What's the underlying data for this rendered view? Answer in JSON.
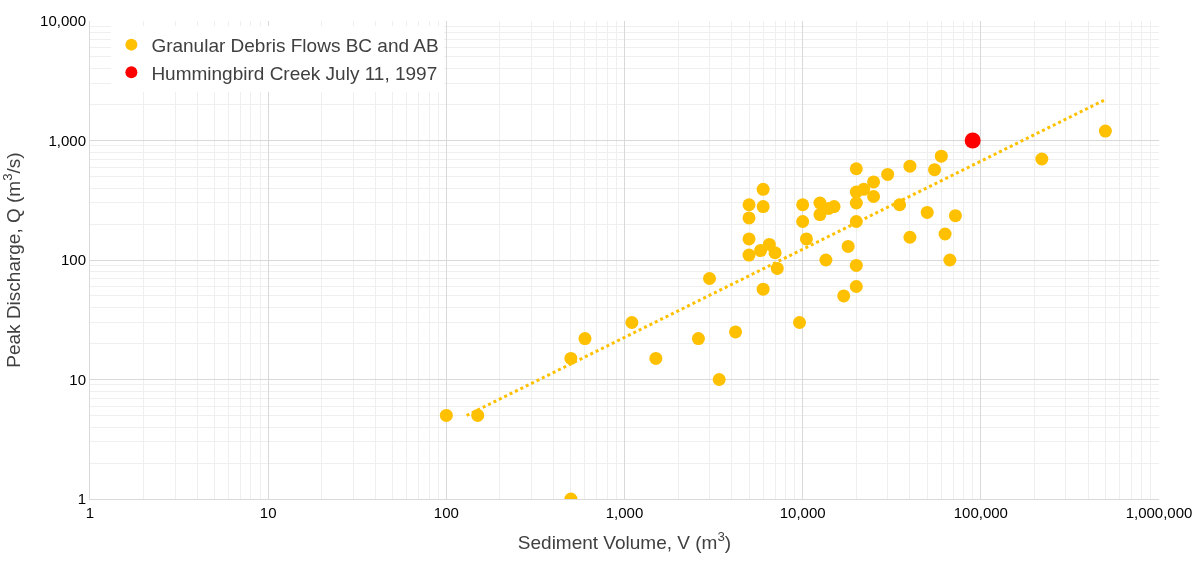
{
  "chart_data": {
    "type": "scatter",
    "xlabel": "Sediment Volume, V (m$^{3}$)",
    "ylabel": "Peak Discharge, Q (m$^{3}$/s)",
    "log": "xy",
    "grid": true,
    "legend": "top left",
    "marker": "circle",
    "xlim": [
      1,
      1000000
    ],
    "ylim": [
      1,
      10000
    ],
    "xticks": [
      1,
      10,
      100,
      {
        "value": 1000,
        "label": "1,000"
      },
      {
        "value": 10000,
        "label": "10,000"
      },
      {
        "value": 100000,
        "label": "100,000"
      },
      {
        "value": 1000000,
        "label": "1,000,000"
      }
    ],
    "yticks": [
      1,
      10,
      100,
      {
        "value": 1000,
        "label": "1,000"
      },
      {
        "value": 10000,
        "label": "10,000"
      }
    ],
    "series": [
      {
        "name": "Granular Debris Flows BC and AB",
        "color": "#ffc000",
        "x": [
          100,
          150,
          500,
          500,
          600,
          1100,
          1500,
          2600,
          3000,
          3400,
          4200,
          5000,
          5000,
          5000,
          5000,
          5800,
          6000,
          6000,
          6000,
          6500,
          7000,
          7200,
          9600,
          10000,
          10000,
          10500,
          12500,
          12500,
          13500,
          14000,
          15000,
          17000,
          18000,
          20000,
          20000,
          20000,
          20000,
          20000,
          20000,
          22000,
          25000,
          25000,
          30000,
          35000,
          40000,
          40000,
          50000,
          55000,
          60000,
          63000,
          67000,
          72000,
          220000,
          500000
        ],
        "values": [
          5,
          5,
          1,
          15,
          22,
          30,
          15,
          22,
          70,
          10,
          25,
          290,
          225,
          150,
          110,
          120,
          390,
          280,
          57,
          135,
          115,
          85,
          30,
          290,
          210,
          150,
          300,
          240,
          100,
          270,
          280,
          50,
          130,
          580,
          370,
          300,
          210,
          90,
          60,
          390,
          450,
          340,
          520,
          290,
          610,
          155,
          250,
          570,
          740,
          165,
          100,
          235,
          700,
          1200
        ]
      },
      {
        "name": "Hummingbird Creek July 11, 1997",
        "color": "#ff0000",
        "x": [
          90000
        ],
        "values": [
          1000
        ]
      },
      {
        "type": "line",
        "color": "#ffc000",
        "line_style": "dotted",
        "marker": "none",
        "x": [
          130,
          500000
        ],
        "values": [
          5,
          2200
        ]
      }
    ]
  }
}
